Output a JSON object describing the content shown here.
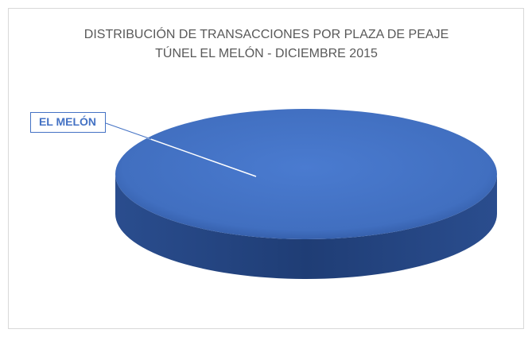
{
  "chart_data": {
    "type": "pie",
    "title": [
      "DISTRIBUCIÓN DE TRANSACCIONES POR PLAZA DE PEAJE",
      "TÚNEL EL MELÓN - DICIEMBRE 2015"
    ],
    "categories": [
      "EL MELÓN"
    ],
    "values": [
      100
    ],
    "colors": [
      "#4472c4"
    ],
    "three_d": true
  }
}
